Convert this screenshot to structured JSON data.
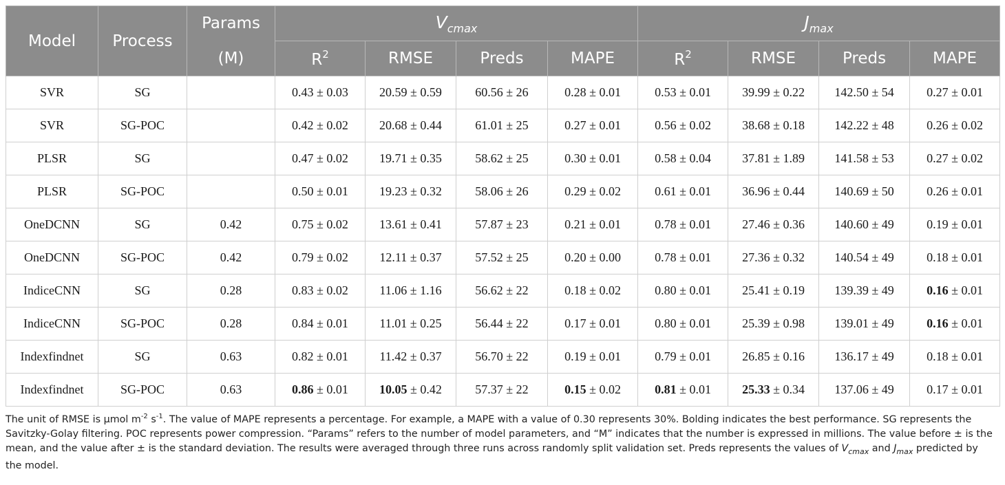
{
  "headers": {
    "model": "Model",
    "process": "Process",
    "params_line1": "Params",
    "params_line2": "(M)",
    "vcmax_base": "V",
    "vcmax_sub": "cmax",
    "jmax_base": "J",
    "jmax_sub": "max",
    "r2_base": "R",
    "r2_sup": "2",
    "rmse": "RMSE",
    "preds": "Preds",
    "mape": "MAPE"
  },
  "rows": [
    {
      "model": "SVR",
      "process": "SG",
      "params": "",
      "cells": [
        {
          "b": "",
          "r": "0.43 ± 0.03"
        },
        {
          "b": "",
          "r": "20.59 ± 0.59"
        },
        {
          "b": "",
          "r": "60.56 ± 26"
        },
        {
          "b": "",
          "r": "0.28 ± 0.01"
        },
        {
          "b": "",
          "r": "0.53 ± 0.01"
        },
        {
          "b": "",
          "r": "39.99 ± 0.22"
        },
        {
          "b": "",
          "r": "142.50 ± 54"
        },
        {
          "b": "",
          "r": "0.27 ± 0.01"
        }
      ]
    },
    {
      "model": "SVR",
      "process": "SG-POC",
      "params": "",
      "cells": [
        {
          "b": "",
          "r": "0.42 ± 0.02"
        },
        {
          "b": "",
          "r": "20.68 ± 0.44"
        },
        {
          "b": "",
          "r": "61.01 ± 25"
        },
        {
          "b": "",
          "r": "0.27 ± 0.01"
        },
        {
          "b": "",
          "r": "0.56 ± 0.02"
        },
        {
          "b": "",
          "r": "38.68 ± 0.18"
        },
        {
          "b": "",
          "r": "142.22 ± 48"
        },
        {
          "b": "",
          "r": "0.26 ± 0.02"
        }
      ]
    },
    {
      "model": "PLSR",
      "process": "SG",
      "params": "",
      "cells": [
        {
          "b": "",
          "r": "0.47 ± 0.02"
        },
        {
          "b": "",
          "r": "19.71 ± 0.35"
        },
        {
          "b": "",
          "r": "58.62 ± 25"
        },
        {
          "b": "",
          "r": "0.30 ± 0.01"
        },
        {
          "b": "",
          "r": "0.58 ± 0.04"
        },
        {
          "b": "",
          "r": "37.81 ± 1.89"
        },
        {
          "b": "",
          "r": "141.58 ± 53"
        },
        {
          "b": "",
          "r": "0.27 ± 0.02"
        }
      ]
    },
    {
      "model": "PLSR",
      "process": "SG-POC",
      "params": "",
      "cells": [
        {
          "b": "",
          "r": "0.50 ± 0.01"
        },
        {
          "b": "",
          "r": "19.23 ± 0.32"
        },
        {
          "b": "",
          "r": "58.06 ± 26"
        },
        {
          "b": "",
          "r": "0.29 ± 0.02"
        },
        {
          "b": "",
          "r": "0.61 ± 0.01"
        },
        {
          "b": "",
          "r": "36.96 ± 0.44"
        },
        {
          "b": "",
          "r": "140.69 ± 50"
        },
        {
          "b": "",
          "r": "0.26 ± 0.01"
        }
      ]
    },
    {
      "model": "OneDCNN",
      "process": "SG",
      "params": "0.42",
      "cells": [
        {
          "b": "",
          "r": "0.75 ± 0.02"
        },
        {
          "b": "",
          "r": "13.61 ± 0.41"
        },
        {
          "b": "",
          "r": "57.87 ± 23"
        },
        {
          "b": "",
          "r": "0.21 ± 0.01"
        },
        {
          "b": "",
          "r": "0.78 ± 0.01"
        },
        {
          "b": "",
          "r": "27.46 ± 0.36"
        },
        {
          "b": "",
          "r": "140.60 ± 49"
        },
        {
          "b": "",
          "r": "0.19 ± 0.01"
        }
      ]
    },
    {
      "model": "OneDCNN",
      "process": "SG-POC",
      "params": "0.42",
      "cells": [
        {
          "b": "",
          "r": "0.79 ± 0.02"
        },
        {
          "b": "",
          "r": "12.11 ± 0.37"
        },
        {
          "b": "",
          "r": "57.52 ± 25"
        },
        {
          "b": "",
          "r": "0.20 ± 0.00"
        },
        {
          "b": "",
          "r": "0.78 ± 0.01"
        },
        {
          "b": "",
          "r": "27.36 ± 0.32"
        },
        {
          "b": "",
          "r": "140.54 ± 49"
        },
        {
          "b": "",
          "r": "0.18 ± 0.01"
        }
      ]
    },
    {
      "model": "IndiceCNN",
      "process": "SG",
      "params": "0.28",
      "cells": [
        {
          "b": "",
          "r": "0.83 ± 0.02"
        },
        {
          "b": "",
          "r": "11.06 ± 1.16"
        },
        {
          "b": "",
          "r": "56.62 ± 22"
        },
        {
          "b": "",
          "r": "0.18 ± 0.02"
        },
        {
          "b": "",
          "r": "0.80 ± 0.01"
        },
        {
          "b": "",
          "r": "25.41 ± 0.19"
        },
        {
          "b": "",
          "r": "139.39 ± 49"
        },
        {
          "b": "0.16",
          "r": " ± 0.01"
        }
      ]
    },
    {
      "model": "IndiceCNN",
      "process": "SG-POC",
      "params": "0.28",
      "cells": [
        {
          "b": "",
          "r": "0.84 ± 0.01"
        },
        {
          "b": "",
          "r": "11.01 ± 0.25"
        },
        {
          "b": "",
          "r": "56.44 ± 22"
        },
        {
          "b": "",
          "r": "0.17 ± 0.01"
        },
        {
          "b": "",
          "r": "0.80 ± 0.01"
        },
        {
          "b": "",
          "r": "25.39 ± 0.98"
        },
        {
          "b": "",
          "r": "139.01 ± 49"
        },
        {
          "b": "0.16",
          "r": " ± 0.01"
        }
      ]
    },
    {
      "model": "Indexfindnet",
      "process": "SG",
      "params": "0.63",
      "cells": [
        {
          "b": "",
          "r": "0.82 ± 0.01"
        },
        {
          "b": "",
          "r": "11.42 ± 0.37"
        },
        {
          "b": "",
          "r": "56.70 ± 22"
        },
        {
          "b": "",
          "r": "0.19 ± 0.01"
        },
        {
          "b": "",
          "r": "0.79 ± 0.01"
        },
        {
          "b": "",
          "r": "26.85 ± 0.16"
        },
        {
          "b": "",
          "r": "136.17 ± 49"
        },
        {
          "b": "",
          "r": "0.18 ± 0.01"
        }
      ]
    },
    {
      "model": "Indexfindnet",
      "process": "SG-POC",
      "params": "0.63",
      "cells": [
        {
          "b": "0.86",
          "r": " ± 0.01"
        },
        {
          "b": "10.05",
          "r": " ± 0.42"
        },
        {
          "b": "",
          "r": "57.37 ± 22"
        },
        {
          "b": "0.15",
          "r": " ± 0.02"
        },
        {
          "b": "0.81",
          "r": " ± 0.01"
        },
        {
          "b": "25.33",
          "r": " ± 0.34"
        },
        {
          "b": "",
          "r": "137.06 ± 49"
        },
        {
          "b": "",
          "r": "0.17 ± 0.01"
        }
      ]
    }
  ],
  "caption": {
    "p1": "The unit of RMSE is μmol m",
    "p1_sup1": "-2",
    "p2": " s",
    "p2_sup": "-1",
    "p3": ". The value of MAPE represents a percentage. For example, a MAPE with a value of 0.30 represents 30%. Bolding indicates the best performance. SG represents the Savitzky-Golay filtering. POC represents power compression. “Params” refers to the number of model parameters, and “M” indicates that the number is expressed in millions. The value before ± is the mean, and the value after ± is the standard deviation. The results were averaged through three runs across randomly split validation set. Preds represents the values of ",
    "v_base": "V",
    "v_sub": "cmax",
    "p4": " and ",
    "j_base": "J",
    "j_sub": "max",
    "p5": " predicted by the model."
  }
}
